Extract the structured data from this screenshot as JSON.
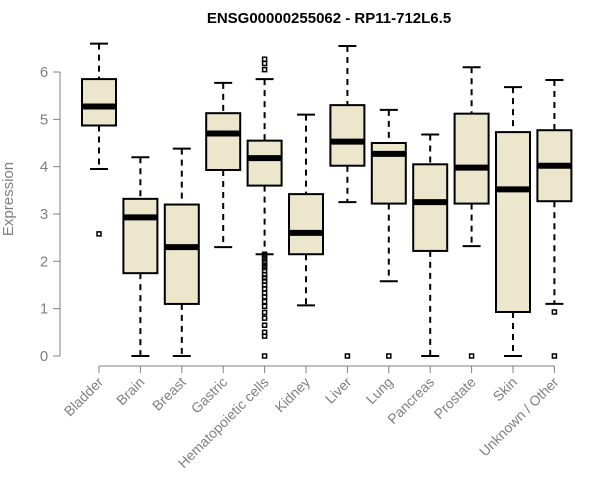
{
  "chart_data": {
    "type": "boxplot",
    "title": "ENSG00000255062 - RP11-712L6.5",
    "xlabel": "",
    "ylabel": "Expression",
    "ylim": [
      0,
      6.6
    ],
    "yticks": [
      0,
      1,
      2,
      3,
      4,
      5,
      6
    ],
    "grid": false,
    "colors": {
      "box_fill": "#ece6cc",
      "axis": "#808080",
      "text": "#808080"
    },
    "series": [
      {
        "name": "Bladder",
        "min": 3.95,
        "q1": 4.87,
        "median": 5.27,
        "q3": 5.85,
        "max": 6.6,
        "outliers": [
          2.58
        ]
      },
      {
        "name": "Brain",
        "min": 0.0,
        "q1": 1.75,
        "median": 2.93,
        "q3": 3.32,
        "max": 4.2,
        "outliers": []
      },
      {
        "name": "Breast",
        "min": 0.0,
        "q1": 1.1,
        "median": 2.3,
        "q3": 3.2,
        "max": 4.38,
        "outliers": []
      },
      {
        "name": "Gastric",
        "min": 2.3,
        "q1": 3.93,
        "median": 4.7,
        "q3": 5.13,
        "max": 5.77,
        "outliers": []
      },
      {
        "name": "Hematopoietic cells",
        "min": 2.15,
        "q1": 3.6,
        "median": 4.18,
        "q3": 4.55,
        "max": 5.85,
        "outliers": [
          6.27,
          6.18,
          6.05,
          2.15,
          2.1,
          2.05,
          1.98,
          1.92,
          1.87,
          1.8,
          1.72,
          1.65,
          1.58,
          1.5,
          1.42,
          1.33,
          1.25,
          1.15,
          1.05,
          0.92,
          0.8,
          0.65,
          0.5,
          0.42,
          0.0
        ]
      },
      {
        "name": "Kidney",
        "min": 1.07,
        "q1": 2.15,
        "median": 2.6,
        "q3": 3.42,
        "max": 5.1,
        "outliers": []
      },
      {
        "name": "Liver",
        "min": 3.25,
        "q1": 4.02,
        "median": 4.53,
        "q3": 5.3,
        "max": 6.55,
        "outliers": [
          0.0
        ]
      },
      {
        "name": "Lung",
        "min": 1.58,
        "q1": 3.22,
        "median": 4.27,
        "q3": 4.5,
        "max": 5.2,
        "outliers": [
          0.0
        ]
      },
      {
        "name": "Pancreas",
        "min": 0.0,
        "q1": 2.22,
        "median": 3.25,
        "q3": 4.05,
        "max": 4.68,
        "outliers": []
      },
      {
        "name": "Prostate",
        "min": 2.32,
        "q1": 3.22,
        "median": 3.98,
        "q3": 5.12,
        "max": 6.1,
        "outliers": [
          0.0
        ]
      },
      {
        "name": "Skin",
        "min": 0.0,
        "q1": 0.93,
        "median": 3.52,
        "q3": 4.73,
        "max": 5.68,
        "outliers": []
      },
      {
        "name": "Unknown / Other",
        "min": 1.1,
        "q1": 3.27,
        "median": 4.02,
        "q3": 4.77,
        "max": 5.83,
        "outliers": [
          0.93,
          0.0
        ]
      }
    ]
  }
}
